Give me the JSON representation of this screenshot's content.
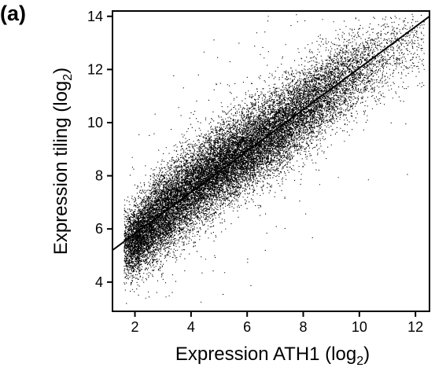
{
  "panel_label": "(a)",
  "chart_data": {
    "type": "scatter",
    "title": "",
    "xlabel": "Expression ATH1 (log",
    "xlabel_sub": "2",
    "xlabel_end": ")",
    "ylabel": "Expression tiling (log",
    "ylabel_sub": "2",
    "ylabel_end": ")",
    "xlim": [
      1.2,
      12.5
    ],
    "ylim": [
      2.9,
      14.2
    ],
    "xticks": [
      2,
      4,
      6,
      8,
      10,
      12
    ],
    "yticks": [
      4,
      6,
      8,
      10,
      12,
      14
    ],
    "grid": false,
    "legend": "none",
    "point_color": "#000000",
    "n_points_approx": 22000,
    "point_cloud": {
      "trend_center": [
        [
          1.7,
          5.4
        ],
        [
          2.2,
          5.8
        ],
        [
          3,
          6.6
        ],
        [
          4,
          7.5
        ],
        [
          5,
          8.3
        ],
        [
          6,
          9.0
        ],
        [
          7,
          9.7
        ],
        [
          8,
          10.5
        ],
        [
          9,
          11.3
        ],
        [
          10,
          12.0
        ],
        [
          11,
          12.6
        ],
        [
          12,
          13.2
        ]
      ],
      "density_by_x": [
        [
          1.7,
          0.5
        ],
        [
          2.1,
          1.0
        ],
        [
          2.6,
          0.9
        ],
        [
          3.5,
          0.8
        ],
        [
          5,
          0.85
        ],
        [
          6,
          0.8
        ],
        [
          7,
          0.7
        ],
        [
          8,
          0.55
        ],
        [
          9,
          0.38
        ],
        [
          10,
          0.22
        ],
        [
          11,
          0.12
        ],
        [
          12,
          0.06
        ]
      ],
      "spread_sd": 0.75
    },
    "fit_line": {
      "x": [
        1.2,
        12.5
      ],
      "y": [
        5.2,
        14.0
      ]
    }
  }
}
